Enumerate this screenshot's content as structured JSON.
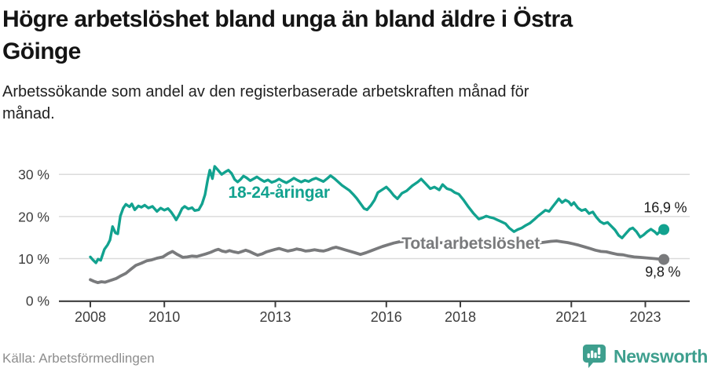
{
  "header": {
    "title_lines": [
      "Högre arbetslöshet bland unga än bland äldre i Östra",
      "Göinge"
    ],
    "subtitle_lines": [
      "Arbetssökande som andel av den registerbaserade arbetskraften månad för",
      "månad."
    ]
  },
  "footer": {
    "source": "Källa: Arbetsförmedlingen",
    "logo_text": "Newsworthy",
    "logo_icon": "bar-chart-speech-bubble-icon"
  },
  "colors": {
    "youth_line": "#12a28f",
    "total_line": "#797a7c",
    "grid": "#dbdbdb",
    "axis": "#3d3d3d",
    "tick_text": "#3d3d3d",
    "annotation_text": "#1a1a1a",
    "title_text": "#141414",
    "source_text": "#8d8d8d",
    "logo_teal": "#3e9f8e",
    "background": "#ffffff"
  },
  "chart_data": {
    "type": "line",
    "title": "Högre arbetslöshet bland unga än bland äldre i Östra Göinge",
    "subtitle": "Arbetssökande som andel av den registerbaserade arbetskraften månad för månad.",
    "grid": true,
    "x_axis": {
      "range": [
        2008,
        2023.5
      ],
      "ticks": [
        2008,
        2010,
        2013,
        2016,
        2018,
        2021,
        2023
      ],
      "tick_labels": [
        "2008",
        "2010",
        "2013",
        "2016",
        "2018",
        "2021",
        "2023"
      ]
    },
    "y_axis": {
      "range": [
        0,
        33
      ],
      "ticks": [
        0,
        10,
        20,
        30
      ],
      "tick_labels": [
        "0 %",
        "10 %",
        "20 %",
        "30 %"
      ]
    },
    "series": [
      {
        "name": "18-24-åringar",
        "color": "#12a28f",
        "stroke_width": 3.4,
        "end_value": 16.9,
        "end_label": "16,9 %",
        "points": [
          [
            2008.0,
            10.4
          ],
          [
            2008.08,
            9.6
          ],
          [
            2008.15,
            9.0
          ],
          [
            2008.21,
            9.9
          ],
          [
            2008.28,
            9.6
          ],
          [
            2008.38,
            12.2
          ],
          [
            2008.47,
            13.3
          ],
          [
            2008.53,
            14.4
          ],
          [
            2008.6,
            17.6
          ],
          [
            2008.68,
            16.1
          ],
          [
            2008.74,
            15.9
          ],
          [
            2008.81,
            20.1
          ],
          [
            2008.89,
            22.0
          ],
          [
            2008.96,
            22.9
          ],
          [
            2009.06,
            22.3
          ],
          [
            2009.12,
            23.0
          ],
          [
            2009.2,
            21.6
          ],
          [
            2009.3,
            22.5
          ],
          [
            2009.38,
            22.2
          ],
          [
            2009.47,
            22.7
          ],
          [
            2009.57,
            22.0
          ],
          [
            2009.68,
            22.4
          ],
          [
            2009.8,
            21.2
          ],
          [
            2009.9,
            22.0
          ],
          [
            2010.0,
            21.5
          ],
          [
            2010.1,
            21.9
          ],
          [
            2010.18,
            21.1
          ],
          [
            2010.25,
            20.2
          ],
          [
            2010.32,
            19.2
          ],
          [
            2010.4,
            20.4
          ],
          [
            2010.48,
            21.9
          ],
          [
            2010.55,
            22.4
          ],
          [
            2010.65,
            21.8
          ],
          [
            2010.75,
            22.1
          ],
          [
            2010.82,
            21.4
          ],
          [
            2010.93,
            21.6
          ],
          [
            2011.02,
            23.0
          ],
          [
            2011.1,
            25.2
          ],
          [
            2011.17,
            28.6
          ],
          [
            2011.23,
            31.0
          ],
          [
            2011.3,
            29.0
          ],
          [
            2011.36,
            31.9
          ],
          [
            2011.45,
            31.0
          ],
          [
            2011.55,
            30.0
          ],
          [
            2011.65,
            30.6
          ],
          [
            2011.73,
            31.0
          ],
          [
            2011.82,
            30.2
          ],
          [
            2011.9,
            28.8
          ],
          [
            2011.98,
            28.2
          ],
          [
            2012.06,
            28.8
          ],
          [
            2012.14,
            29.6
          ],
          [
            2012.22,
            29.2
          ],
          [
            2012.32,
            28.5
          ],
          [
            2012.42,
            29.0
          ],
          [
            2012.5,
            29.4
          ],
          [
            2012.6,
            28.8
          ],
          [
            2012.7,
            28.3
          ],
          [
            2012.8,
            28.7
          ],
          [
            2012.9,
            28.1
          ],
          [
            2013.0,
            28.4
          ],
          [
            2013.1,
            28.9
          ],
          [
            2013.2,
            28.4
          ],
          [
            2013.3,
            28.0
          ],
          [
            2013.4,
            28.5
          ],
          [
            2013.5,
            29.1
          ],
          [
            2013.6,
            28.6
          ],
          [
            2013.7,
            28.2
          ],
          [
            2013.8,
            28.6
          ],
          [
            2013.9,
            28.3
          ],
          [
            2014.0,
            28.8
          ],
          [
            2014.1,
            29.1
          ],
          [
            2014.2,
            28.7
          ],
          [
            2014.3,
            28.3
          ],
          [
            2014.4,
            29.0
          ],
          [
            2014.49,
            29.7
          ],
          [
            2014.6,
            29.0
          ],
          [
            2014.7,
            28.2
          ],
          [
            2014.8,
            27.4
          ],
          [
            2014.9,
            26.8
          ],
          [
            2015.0,
            26.2
          ],
          [
            2015.1,
            25.3
          ],
          [
            2015.2,
            24.3
          ],
          [
            2015.3,
            23.1
          ],
          [
            2015.4,
            21.9
          ],
          [
            2015.48,
            21.6
          ],
          [
            2015.58,
            22.6
          ],
          [
            2015.68,
            23.9
          ],
          [
            2015.77,
            25.7
          ],
          [
            2015.88,
            26.3
          ],
          [
            2016.0,
            27.0
          ],
          [
            2016.1,
            26.1
          ],
          [
            2016.2,
            25.0
          ],
          [
            2016.3,
            24.2
          ],
          [
            2016.42,
            25.5
          ],
          [
            2016.55,
            26.1
          ],
          [
            2016.7,
            27.3
          ],
          [
            2016.85,
            28.2
          ],
          [
            2016.94,
            28.9
          ],
          [
            2017.05,
            27.9
          ],
          [
            2017.19,
            26.6
          ],
          [
            2017.3,
            27.0
          ],
          [
            2017.43,
            26.3
          ],
          [
            2017.52,
            27.6
          ],
          [
            2017.64,
            26.6
          ],
          [
            2017.75,
            26.3
          ],
          [
            2017.85,
            25.7
          ],
          [
            2017.96,
            25.3
          ],
          [
            2018.08,
            24.0
          ],
          [
            2018.2,
            22.5
          ],
          [
            2018.35,
            20.8
          ],
          [
            2018.5,
            19.4
          ],
          [
            2018.6,
            19.7
          ],
          [
            2018.7,
            20.1
          ],
          [
            2018.8,
            19.8
          ],
          [
            2018.9,
            19.6
          ],
          [
            2019.0,
            19.2
          ],
          [
            2019.1,
            18.8
          ],
          [
            2019.22,
            18.3
          ],
          [
            2019.32,
            17.3
          ],
          [
            2019.45,
            16.4
          ],
          [
            2019.55,
            16.9
          ],
          [
            2019.66,
            17.3
          ],
          [
            2019.77,
            17.9
          ],
          [
            2019.88,
            18.4
          ],
          [
            2020.0,
            19.3
          ],
          [
            2020.1,
            20.1
          ],
          [
            2020.2,
            20.8
          ],
          [
            2020.3,
            21.5
          ],
          [
            2020.4,
            21.2
          ],
          [
            2020.5,
            22.4
          ],
          [
            2020.6,
            23.5
          ],
          [
            2020.66,
            24.2
          ],
          [
            2020.75,
            23.3
          ],
          [
            2020.84,
            23.9
          ],
          [
            2020.93,
            23.5
          ],
          [
            2021.0,
            22.7
          ],
          [
            2021.07,
            23.3
          ],
          [
            2021.18,
            22.0
          ],
          [
            2021.28,
            21.4
          ],
          [
            2021.38,
            21.7
          ],
          [
            2021.48,
            20.7
          ],
          [
            2021.58,
            21.1
          ],
          [
            2021.68,
            19.8
          ],
          [
            2021.78,
            18.8
          ],
          [
            2021.88,
            18.3
          ],
          [
            2021.98,
            18.6
          ],
          [
            2022.08,
            17.7
          ],
          [
            2022.18,
            16.8
          ],
          [
            2022.28,
            15.5
          ],
          [
            2022.37,
            14.9
          ],
          [
            2022.48,
            16.0
          ],
          [
            2022.58,
            17.0
          ],
          [
            2022.66,
            17.3
          ],
          [
            2022.76,
            16.4
          ],
          [
            2022.86,
            15.1
          ],
          [
            2022.95,
            15.6
          ],
          [
            2023.05,
            16.4
          ],
          [
            2023.15,
            17.0
          ],
          [
            2023.25,
            16.4
          ],
          [
            2023.32,
            15.8
          ],
          [
            2023.42,
            16.7
          ],
          [
            2023.5,
            16.9
          ]
        ]
      },
      {
        "name": "Total arbetslöshet",
        "color": "#797a7c",
        "stroke_width": 3.8,
        "end_value": 9.8,
        "end_label": "9,8 %",
        "points": [
          [
            2008.0,
            5.0
          ],
          [
            2008.1,
            4.6
          ],
          [
            2008.2,
            4.3
          ],
          [
            2008.3,
            4.5
          ],
          [
            2008.4,
            4.4
          ],
          [
            2008.5,
            4.7
          ],
          [
            2008.6,
            5.0
          ],
          [
            2008.7,
            5.3
          ],
          [
            2008.8,
            5.8
          ],
          [
            2008.96,
            6.5
          ],
          [
            2009.1,
            7.5
          ],
          [
            2009.23,
            8.4
          ],
          [
            2009.38,
            8.9
          ],
          [
            2009.53,
            9.5
          ],
          [
            2009.66,
            9.7
          ],
          [
            2009.8,
            10.1
          ],
          [
            2009.96,
            10.4
          ],
          [
            2010.1,
            11.2
          ],
          [
            2010.22,
            11.7
          ],
          [
            2010.35,
            11.0
          ],
          [
            2010.5,
            10.3
          ],
          [
            2010.62,
            10.4
          ],
          [
            2010.75,
            10.6
          ],
          [
            2010.88,
            10.5
          ],
          [
            2011.0,
            10.8
          ],
          [
            2011.12,
            11.1
          ],
          [
            2011.25,
            11.5
          ],
          [
            2011.38,
            12.0
          ],
          [
            2011.46,
            12.2
          ],
          [
            2011.56,
            11.8
          ],
          [
            2011.66,
            11.6
          ],
          [
            2011.76,
            11.9
          ],
          [
            2011.88,
            11.6
          ],
          [
            2012.0,
            11.4
          ],
          [
            2012.1,
            11.7
          ],
          [
            2012.2,
            12.0
          ],
          [
            2012.3,
            11.7
          ],
          [
            2012.42,
            11.2
          ],
          [
            2012.52,
            10.8
          ],
          [
            2012.64,
            11.1
          ],
          [
            2012.76,
            11.6
          ],
          [
            2012.88,
            11.9
          ],
          [
            2013.0,
            12.2
          ],
          [
            2013.1,
            12.4
          ],
          [
            2013.22,
            12.1
          ],
          [
            2013.34,
            11.8
          ],
          [
            2013.46,
            12.0
          ],
          [
            2013.58,
            12.3
          ],
          [
            2013.7,
            12.1
          ],
          [
            2013.82,
            11.8
          ],
          [
            2013.94,
            11.9
          ],
          [
            2014.06,
            12.1
          ],
          [
            2014.18,
            11.9
          ],
          [
            2014.3,
            11.8
          ],
          [
            2014.42,
            12.1
          ],
          [
            2014.54,
            12.5
          ],
          [
            2014.64,
            12.7
          ],
          [
            2014.76,
            12.4
          ],
          [
            2014.88,
            12.1
          ],
          [
            2015.0,
            11.8
          ],
          [
            2015.15,
            11.4
          ],
          [
            2015.3,
            11.0
          ],
          [
            2015.45,
            11.4
          ],
          [
            2015.6,
            11.9
          ],
          [
            2015.75,
            12.4
          ],
          [
            2015.9,
            12.9
          ],
          [
            2016.05,
            13.3
          ],
          [
            2016.2,
            13.7
          ],
          [
            2016.35,
            14.0
          ],
          [
            2016.5,
            14.1
          ],
          [
            2016.65,
            13.9
          ],
          [
            2016.8,
            14.0
          ],
          [
            2016.95,
            13.8
          ],
          [
            2017.2,
            13.7
          ],
          [
            2017.45,
            13.8
          ],
          [
            2017.7,
            13.6
          ],
          [
            2017.95,
            13.4
          ],
          [
            2018.2,
            13.2
          ],
          [
            2018.45,
            13.1
          ],
          [
            2018.7,
            13.0
          ],
          [
            2018.95,
            12.9
          ],
          [
            2019.2,
            12.9
          ],
          [
            2019.45,
            13.0
          ],
          [
            2019.7,
            13.2
          ],
          [
            2019.95,
            13.5
          ],
          [
            2020.2,
            13.8
          ],
          [
            2020.45,
            14.1
          ],
          [
            2020.6,
            14.2
          ],
          [
            2020.75,
            14.0
          ],
          [
            2020.9,
            13.8
          ],
          [
            2021.05,
            13.5
          ],
          [
            2021.2,
            13.2
          ],
          [
            2021.35,
            12.8
          ],
          [
            2021.5,
            12.4
          ],
          [
            2021.65,
            12.0
          ],
          [
            2021.8,
            11.7
          ],
          [
            2021.95,
            11.6
          ],
          [
            2022.1,
            11.3
          ],
          [
            2022.25,
            11.0
          ],
          [
            2022.4,
            10.9
          ],
          [
            2022.55,
            10.6
          ],
          [
            2022.7,
            10.4
          ],
          [
            2022.85,
            10.3
          ],
          [
            2023.0,
            10.2
          ],
          [
            2023.12,
            10.1
          ],
          [
            2023.25,
            10.0
          ],
          [
            2023.38,
            9.9
          ],
          [
            2023.5,
            9.8
          ]
        ]
      }
    ],
    "annotations": [
      {
        "text": "18-24-åringar",
        "x": 2013.1,
        "y": 24.4,
        "anchor": "middle",
        "size": 21,
        "bold": true,
        "halo": true,
        "color": "#12a28f",
        "name": "series-label-youth"
      },
      {
        "text": "Total arbetslöshet",
        "x": 2018.28,
        "y": 12.3,
        "anchor": "middle",
        "size": 21,
        "bold": true,
        "halo": true,
        "color": "#797a7c",
        "name": "series-label-total"
      },
      {
        "text": "16,9 %",
        "x": 2024.12,
        "y": 21.0,
        "anchor": "end",
        "size": 18,
        "bold": false,
        "halo": false,
        "color": "#1a1a1a",
        "name": "end-value-label-youth"
      },
      {
        "text": "9,8 %",
        "x": 2023.95,
        "y": 5.7,
        "anchor": "end",
        "size": 18,
        "bold": false,
        "halo": false,
        "color": "#1a1a1a",
        "name": "end-value-label-total"
      }
    ]
  }
}
